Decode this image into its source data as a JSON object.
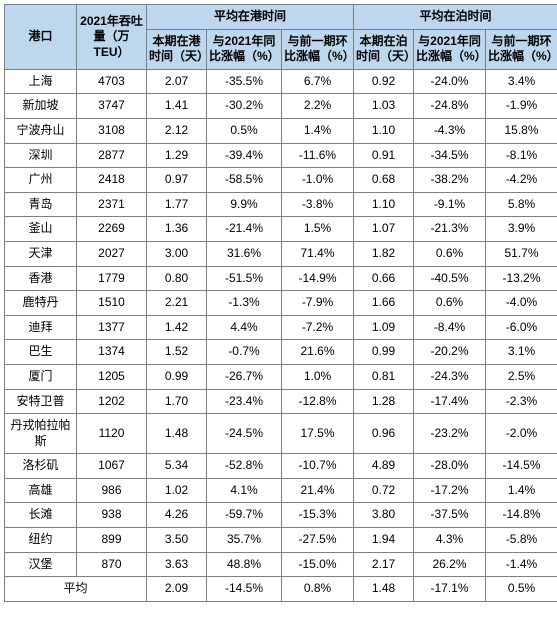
{
  "header": {
    "port": "港口",
    "throughput": "2021年吞吐量（万TEU）",
    "group_port": "平均在港时间",
    "group_berth": "平均在泊时间",
    "sub_port_days": "本期在港时间（天）",
    "sub_yoy": "与2021年同比涨幅（%）",
    "sub_mom": "与前一期环比涨幅（%）",
    "sub_berth_days": "本期在泊时间（天）",
    "sub_yoy2": "与2021年同比涨幅（%）",
    "sub_mom2": "与前一期环比涨幅（%）"
  },
  "rows": [
    {
      "port": "上海",
      "teu": "4703",
      "pd": "2.07",
      "pyoy": "-35.5%",
      "pmom": "6.7%",
      "bd": "0.92",
      "byoy": "-24.0%",
      "bmom": "3.4%"
    },
    {
      "port": "新加坡",
      "teu": "3747",
      "pd": "1.41",
      "pyoy": "-30.2%",
      "pmom": "2.2%",
      "bd": "1.03",
      "byoy": "-24.8%",
      "bmom": "-1.9%"
    },
    {
      "port": "宁波舟山",
      "teu": "3108",
      "pd": "2.12",
      "pyoy": "0.5%",
      "pmom": "1.4%",
      "bd": "1.10",
      "byoy": "-4.3%",
      "bmom": "15.8%"
    },
    {
      "port": "深圳",
      "teu": "2877",
      "pd": "1.29",
      "pyoy": "-39.4%",
      "pmom": "-11.6%",
      "bd": "0.91",
      "byoy": "-34.5%",
      "bmom": "-8.1%"
    },
    {
      "port": "广州",
      "teu": "2418",
      "pd": "0.97",
      "pyoy": "-58.5%",
      "pmom": "-1.0%",
      "bd": "0.68",
      "byoy": "-38.2%",
      "bmom": "-4.2%"
    },
    {
      "port": "青岛",
      "teu": "2371",
      "pd": "1.77",
      "pyoy": "9.9%",
      "pmom": "-3.8%",
      "bd": "1.10",
      "byoy": "-9.1%",
      "bmom": "5.8%"
    },
    {
      "port": "釜山",
      "teu": "2269",
      "pd": "1.36",
      "pyoy": "-21.4%",
      "pmom": "1.5%",
      "bd": "1.07",
      "byoy": "-21.3%",
      "bmom": "3.9%"
    },
    {
      "port": "天津",
      "teu": "2027",
      "pd": "3.00",
      "pyoy": "31.6%",
      "pmom": "71.4%",
      "bd": "1.82",
      "byoy": "0.6%",
      "bmom": "51.7%"
    },
    {
      "port": "香港",
      "teu": "1779",
      "pd": "0.80",
      "pyoy": "-51.5%",
      "pmom": "-14.9%",
      "bd": "0.66",
      "byoy": "-40.5%",
      "bmom": "-13.2%"
    },
    {
      "port": "鹿特丹",
      "teu": "1510",
      "pd": "2.21",
      "pyoy": "-1.3%",
      "pmom": "-7.9%",
      "bd": "1.66",
      "byoy": "0.6%",
      "bmom": "-4.0%"
    },
    {
      "port": "迪拜",
      "teu": "1377",
      "pd": "1.42",
      "pyoy": "4.4%",
      "pmom": "-7.2%",
      "bd": "1.09",
      "byoy": "-8.4%",
      "bmom": "-6.0%"
    },
    {
      "port": "巴生",
      "teu": "1374",
      "pd": "1.52",
      "pyoy": "-0.7%",
      "pmom": "21.6%",
      "bd": "0.99",
      "byoy": "-20.2%",
      "bmom": "3.1%"
    },
    {
      "port": "厦门",
      "teu": "1205",
      "pd": "0.99",
      "pyoy": "-26.7%",
      "pmom": "1.0%",
      "bd": "0.81",
      "byoy": "-24.3%",
      "bmom": "2.5%"
    },
    {
      "port": "安特卫普",
      "teu": "1202",
      "pd": "1.70",
      "pyoy": "-23.4%",
      "pmom": "-12.8%",
      "bd": "1.28",
      "byoy": "-17.4%",
      "bmom": "-2.3%"
    },
    {
      "port": "丹戎帕拉帕斯",
      "teu": "1120",
      "pd": "1.48",
      "pyoy": "-24.5%",
      "pmom": "17.5%",
      "bd": "0.96",
      "byoy": "-23.2%",
      "bmom": "-2.0%"
    },
    {
      "port": "洛杉矶",
      "teu": "1067",
      "pd": "5.34",
      "pyoy": "-52.8%",
      "pmom": "-10.7%",
      "bd": "4.89",
      "byoy": "-28.0%",
      "bmom": "-14.5%"
    },
    {
      "port": "高雄",
      "teu": "986",
      "pd": "1.02",
      "pyoy": "4.1%",
      "pmom": "21.4%",
      "bd": "0.72",
      "byoy": "-17.2%",
      "bmom": "1.4%"
    },
    {
      "port": "长滩",
      "teu": "938",
      "pd": "4.26",
      "pyoy": "-59.7%",
      "pmom": "-15.3%",
      "bd": "3.80",
      "byoy": "-37.5%",
      "bmom": "-14.8%"
    },
    {
      "port": "纽约",
      "teu": "899",
      "pd": "3.50",
      "pyoy": "35.7%",
      "pmom": "-27.5%",
      "bd": "1.94",
      "byoy": "4.3%",
      "bmom": "-5.8%"
    },
    {
      "port": "汉堡",
      "teu": "870",
      "pd": "3.63",
      "pyoy": "48.8%",
      "pmom": "-15.0%",
      "bd": "2.17",
      "byoy": "26.2%",
      "bmom": "-1.4%"
    }
  ],
  "average": {
    "label": "平均",
    "pd": "2.09",
    "pyoy": "-14.5%",
    "pmom": "0.8%",
    "bd": "1.48",
    "byoy": "-17.1%",
    "bmom": "0.5%"
  }
}
